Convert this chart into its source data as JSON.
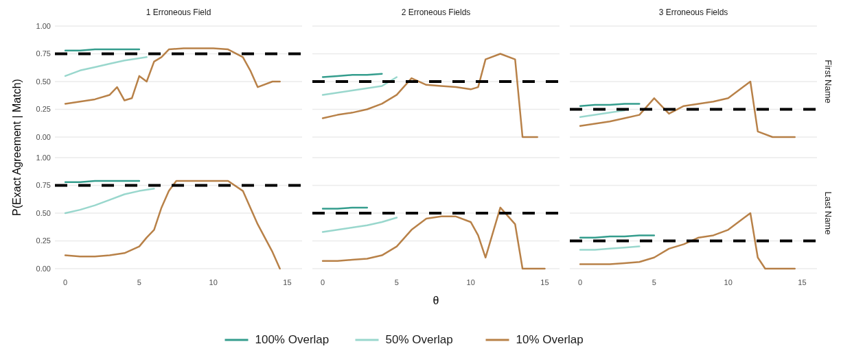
{
  "chart_data": [
    {
      "type": "line",
      "title": "1 Erroneous Field",
      "ylabel": "P(Exact Agreement | Match)",
      "xlim": [
        -0.7,
        16
      ],
      "ylim": [
        0,
        1
      ],
      "yticks": [
        {
          "value": 0,
          "label": "0.00"
        },
        {
          "value": 0.25,
          "label": "0.25"
        },
        {
          "value": 0.5,
          "label": "0.50"
        },
        {
          "value": 0.75,
          "label": "0.75"
        },
        {
          "value": 1,
          "label": "1.00"
        }
      ],
      "grid": "y",
      "tick_labels": "y",
      "legend": "bottom",
      "line_style": "solid",
      "ref_lines": [
        {
          "axis": "y",
          "value": 0.75,
          "color": "#000000",
          "line_style": "dashed"
        }
      ],
      "series": [
        {
          "name": "100% Overlap",
          "color": "#018571",
          "x": [
            0,
            1,
            2,
            3,
            4,
            5
          ],
          "values": [
            0.78,
            0.78,
            0.79,
            0.79,
            0.79,
            0.79
          ]
        },
        {
          "name": "50% Overlap",
          "color": "#80cdc1",
          "x": [
            0,
            1,
            2,
            3,
            4,
            5,
            5.5
          ],
          "values": [
            0.55,
            0.6,
            0.63,
            0.66,
            0.69,
            0.71,
            0.72
          ]
        },
        {
          "name": "10% Overlap",
          "color": "#a6611a",
          "x": [
            0,
            1,
            2,
            3,
            3.5,
            4,
            4.5,
            5,
            5.5,
            6,
            6.5,
            7,
            8,
            9,
            10,
            11,
            12,
            12.5,
            13,
            14,
            14.5
          ],
          "values": [
            0.3,
            0.32,
            0.34,
            0.38,
            0.45,
            0.33,
            0.35,
            0.55,
            0.5,
            0.68,
            0.72,
            0.79,
            0.8,
            0.8,
            0.8,
            0.79,
            0.72,
            0.6,
            0.45,
            0.5,
            0.5
          ]
        }
      ]
    },
    {
      "type": "line",
      "title": "2 Erroneous Fields",
      "xlim": [
        -0.7,
        16
      ],
      "ylim": [
        0,
        1
      ],
      "yticks": [
        0,
        0.25,
        0.5,
        0.75,
        1
      ],
      "grid": "y",
      "tick_labels": false,
      "line_style": "solid",
      "ref_lines": [
        {
          "axis": "y",
          "value": 0.5,
          "color": "#000000",
          "line_style": "dashed"
        }
      ],
      "series": [
        {
          "color": "#018571",
          "x": [
            0,
            1,
            2,
            3,
            4
          ],
          "values": [
            0.54,
            0.55,
            0.56,
            0.56,
            0.57
          ]
        },
        {
          "color": "#80cdc1",
          "x": [
            0,
            1,
            2,
            3,
            4,
            5
          ],
          "values": [
            0.38,
            0.4,
            0.42,
            0.44,
            0.46,
            0.54
          ]
        },
        {
          "color": "#a6611a",
          "x": [
            0,
            1,
            2,
            3,
            4,
            5,
            6,
            7,
            8,
            9,
            10,
            10.5,
            11,
            12,
            13,
            13.5,
            14.5
          ],
          "values": [
            0.17,
            0.2,
            0.22,
            0.25,
            0.3,
            0.38,
            0.53,
            0.47,
            0.46,
            0.45,
            0.43,
            0.45,
            0.7,
            0.75,
            0.7,
            0,
            0
          ]
        }
      ]
    },
    {
      "type": "line",
      "title": "3 Erroneous Fields",
      "y2label": "First Name",
      "xlim": [
        -0.7,
        16
      ],
      "ylim": [
        0,
        1
      ],
      "yticks": [
        0,
        0.25,
        0.5,
        0.75,
        1
      ],
      "grid": "y",
      "tick_labels": false,
      "line_style": "solid",
      "ref_lines": [
        {
          "axis": "y",
          "value": 0.25,
          "color": "#000000",
          "line_style": "dashed"
        }
      ],
      "series": [
        {
          "color": "#018571",
          "x": [
            0,
            1,
            2,
            3,
            4
          ],
          "values": [
            0.28,
            0.29,
            0.29,
            0.3,
            0.3
          ]
        },
        {
          "color": "#80cdc1",
          "x": [
            0,
            1,
            2,
            3
          ],
          "values": [
            0.18,
            0.2,
            0.22,
            0.24
          ]
        },
        {
          "color": "#a6611a",
          "x": [
            0,
            1,
            2,
            3,
            4,
            5,
            6,
            7,
            8,
            9,
            10,
            11,
            11.5,
            12,
            13,
            14.5
          ],
          "values": [
            0.1,
            0.12,
            0.14,
            0.17,
            0.2,
            0.35,
            0.21,
            0.28,
            0.3,
            0.32,
            0.35,
            0.45,
            0.5,
            0.05,
            0,
            0
          ]
        }
      ]
    },
    {
      "type": "line",
      "xlim": [
        -0.7,
        16
      ],
      "ylim": [
        0,
        1
      ],
      "xticks": [
        0,
        5,
        10,
        15
      ],
      "yticks": [
        {
          "value": 0,
          "label": "0.00"
        },
        {
          "value": 0.25,
          "label": "0.25"
        },
        {
          "value": 0.5,
          "label": "0.50"
        },
        {
          "value": 0.75,
          "label": "0.75"
        },
        {
          "value": 1,
          "label": "1.00"
        }
      ],
      "grid": "y",
      "line_style": "solid",
      "ref_lines": [
        {
          "axis": "y",
          "value": 0.75,
          "color": "#000000",
          "line_style": "dashed"
        }
      ],
      "series": [
        {
          "color": "#018571",
          "x": [
            0,
            1,
            2,
            3,
            4,
            5
          ],
          "values": [
            0.78,
            0.78,
            0.79,
            0.79,
            0.79,
            0.79
          ]
        },
        {
          "color": "#80cdc1",
          "x": [
            0,
            1,
            2,
            3,
            4,
            5,
            6
          ],
          "values": [
            0.5,
            0.53,
            0.57,
            0.62,
            0.67,
            0.7,
            0.72
          ]
        },
        {
          "color": "#a6611a",
          "x": [
            0,
            1,
            2,
            3,
            4,
            5,
            5.5,
            6,
            6.5,
            7,
            7.5,
            8,
            10,
            11,
            12,
            13,
            14,
            14.5
          ],
          "values": [
            0.12,
            0.11,
            0.11,
            0.12,
            0.14,
            0.2,
            0.28,
            0.35,
            0.55,
            0.7,
            0.79,
            0.79,
            0.79,
            0.79,
            0.7,
            0.4,
            0.15,
            0
          ]
        }
      ]
    },
    {
      "type": "line",
      "xlabel": "θ",
      "xlim": [
        -0.7,
        16
      ],
      "ylim": [
        0,
        1
      ],
      "xticks": [
        0,
        5,
        10,
        15
      ],
      "yticks": [
        0,
        0.25,
        0.5,
        0.75,
        1
      ],
      "grid": "y",
      "tick_labels": "x",
      "line_style": "solid",
      "ref_lines": [
        {
          "axis": "y",
          "value": 0.5,
          "color": "#000000",
          "line_style": "dashed"
        }
      ],
      "series": [
        {
          "color": "#018571",
          "x": [
            0,
            1,
            2,
            3
          ],
          "values": [
            0.54,
            0.54,
            0.55,
            0.55
          ]
        },
        {
          "color": "#80cdc1",
          "x": [
            0,
            1,
            2,
            3,
            4,
            5
          ],
          "values": [
            0.33,
            0.35,
            0.37,
            0.39,
            0.42,
            0.46
          ]
        },
        {
          "color": "#a6611a",
          "x": [
            0,
            1,
            2,
            3,
            4,
            5,
            6,
            7,
            8,
            9,
            10,
            10.5,
            11,
            12,
            13,
            13.5,
            15
          ],
          "values": [
            0.07,
            0.07,
            0.08,
            0.09,
            0.12,
            0.2,
            0.35,
            0.45,
            0.47,
            0.47,
            0.42,
            0.3,
            0.1,
            0.55,
            0.4,
            0,
            0
          ]
        }
      ]
    },
    {
      "type": "line",
      "y2label": "Last Name",
      "xlim": [
        -0.7,
        16
      ],
      "ylim": [
        0,
        1
      ],
      "xticks": [
        0,
        5,
        10,
        15
      ],
      "yticks": [
        0,
        0.25,
        0.5,
        0.75,
        1
      ],
      "grid": "y",
      "tick_labels": "x",
      "line_style": "solid",
      "ref_lines": [
        {
          "axis": "y",
          "value": 0.25,
          "color": "#000000",
          "line_style": "dashed"
        }
      ],
      "series": [
        {
          "color": "#018571",
          "x": [
            0,
            1,
            2,
            3,
            4,
            5
          ],
          "values": [
            0.28,
            0.28,
            0.29,
            0.29,
            0.3,
            0.3
          ]
        },
        {
          "color": "#80cdc1",
          "x": [
            0,
            1,
            2,
            3,
            4
          ],
          "values": [
            0.17,
            0.17,
            0.18,
            0.19,
            0.2
          ]
        },
        {
          "color": "#a6611a",
          "x": [
            0,
            1,
            2,
            3,
            4,
            5,
            6,
            7,
            8,
            9,
            10,
            11,
            11.5,
            12,
            12.5,
            13,
            14.5
          ],
          "values": [
            0.04,
            0.04,
            0.04,
            0.05,
            0.06,
            0.1,
            0.18,
            0.22,
            0.28,
            0.3,
            0.35,
            0.45,
            0.5,
            0.1,
            0,
            0,
            0
          ]
        }
      ]
    }
  ]
}
